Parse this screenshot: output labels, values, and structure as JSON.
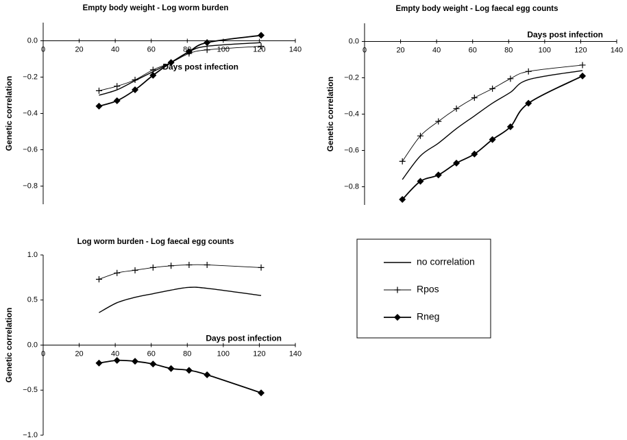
{
  "chart_data": [
    {
      "type": "line",
      "title": "Empty body weight - Log worm burden",
      "x_label": "Days post infection",
      "y_label": "Genetic correlation",
      "x": [
        31,
        41,
        51,
        61,
        71,
        81,
        91,
        121
      ],
      "xlim": [
        0,
        140
      ],
      "xticks": [
        0,
        20,
        40,
        60,
        80,
        100,
        120,
        140
      ],
      "ylim": [
        -0.9,
        0.1
      ],
      "yticks": [
        {
          "value": 0,
          "label": "0.0"
        },
        {
          "value": -0.2,
          "label": "−0.2"
        },
        {
          "value": -0.4,
          "label": "−0.4"
        },
        {
          "value": -0.6,
          "label": "−0.6"
        },
        {
          "value": -0.8,
          "label": "−0.8"
        }
      ],
      "series": [
        {
          "name": "no correlation",
          "color": "#000000",
          "marker": "none",
          "values": [
            -0.3,
            -0.27,
            -0.22,
            -0.17,
            -0.12,
            -0.06,
            -0.03,
            -0.01
          ]
        },
        {
          "name": "Rpos",
          "color": "#000000",
          "marker": "plus",
          "values": [
            -0.275,
            -0.25,
            -0.215,
            -0.16,
            -0.12,
            -0.07,
            -0.05,
            -0.03
          ]
        },
        {
          "name": "Rneg",
          "color": "#000000",
          "marker": "diamond",
          "values": [
            -0.36,
            -0.33,
            -0.27,
            -0.19,
            -0.12,
            -0.06,
            -0.01,
            0.03
          ]
        }
      ]
    },
    {
      "type": "line",
      "title": "Empty body weight - Log faecal egg counts",
      "x_label": "Days post infection",
      "y_label": "Genetic correlation",
      "x": [
        21,
        31,
        41,
        51,
        61,
        71,
        81,
        91,
        121
      ],
      "xlim": [
        0,
        140
      ],
      "xticks": [
        0,
        20,
        40,
        60,
        80,
        100,
        120,
        140
      ],
      "ylim": [
        -0.9,
        0.1
      ],
      "yticks": [
        {
          "value": 0,
          "label": "0.0"
        },
        {
          "value": -0.2,
          "label": "−0.2"
        },
        {
          "value": -0.4,
          "label": "−0.4"
        },
        {
          "value": -0.6,
          "label": "−0.6"
        },
        {
          "value": -0.8,
          "label": "−0.8"
        }
      ],
      "series": [
        {
          "color": "#000000",
          "marker": "none",
          "values": [
            -0.76,
            -0.63,
            -0.56,
            -0.48,
            -0.41,
            -0.34,
            -0.28,
            -0.21,
            -0.16
          ]
        },
        {
          "color": "#000000",
          "marker": "plus",
          "values": [
            -0.66,
            -0.52,
            -0.44,
            -0.37,
            -0.31,
            -0.26,
            -0.205,
            -0.165,
            -0.13
          ]
        },
        {
          "color": "#000000",
          "marker": "diamond",
          "values": [
            -0.87,
            -0.77,
            -0.735,
            -0.67,
            -0.62,
            -0.54,
            -0.47,
            -0.34,
            -0.19
          ]
        }
      ]
    },
    {
      "type": "line",
      "title": "Log worm burden - Log faecal egg counts",
      "x_label": "Days post infection",
      "y_label": "Genetic correlation",
      "x": [
        31,
        41,
        51,
        61,
        71,
        81,
        91,
        121
      ],
      "xlim": [
        0,
        140
      ],
      "xticks": [
        0,
        20,
        40,
        60,
        80,
        100,
        120,
        140
      ],
      "ylim": [
        -1.0,
        1.0
      ],
      "yticks": [
        {
          "value": 1,
          "label": "1.0"
        },
        {
          "value": 0.5,
          "label": "0.5"
        },
        {
          "value": 0,
          "label": "0.0"
        },
        {
          "value": -0.5,
          "label": "−0.5"
        },
        {
          "value": -1,
          "label": "−1.0"
        }
      ],
      "series": [
        {
          "color": "#000000",
          "marker": "none",
          "values": [
            0.36,
            0.47,
            0.53,
            0.57,
            0.61,
            0.64,
            0.63,
            0.55
          ]
        },
        {
          "color": "#000000",
          "marker": "plus",
          "values": [
            0.73,
            0.8,
            0.83,
            0.86,
            0.88,
            0.89,
            0.89,
            0.86
          ]
        },
        {
          "color": "#000000",
          "marker": "diamond",
          "values": [
            -0.2,
            -0.17,
            -0.18,
            -0.21,
            -0.26,
            -0.28,
            -0.33,
            -0.53
          ]
        }
      ]
    }
  ]
}
